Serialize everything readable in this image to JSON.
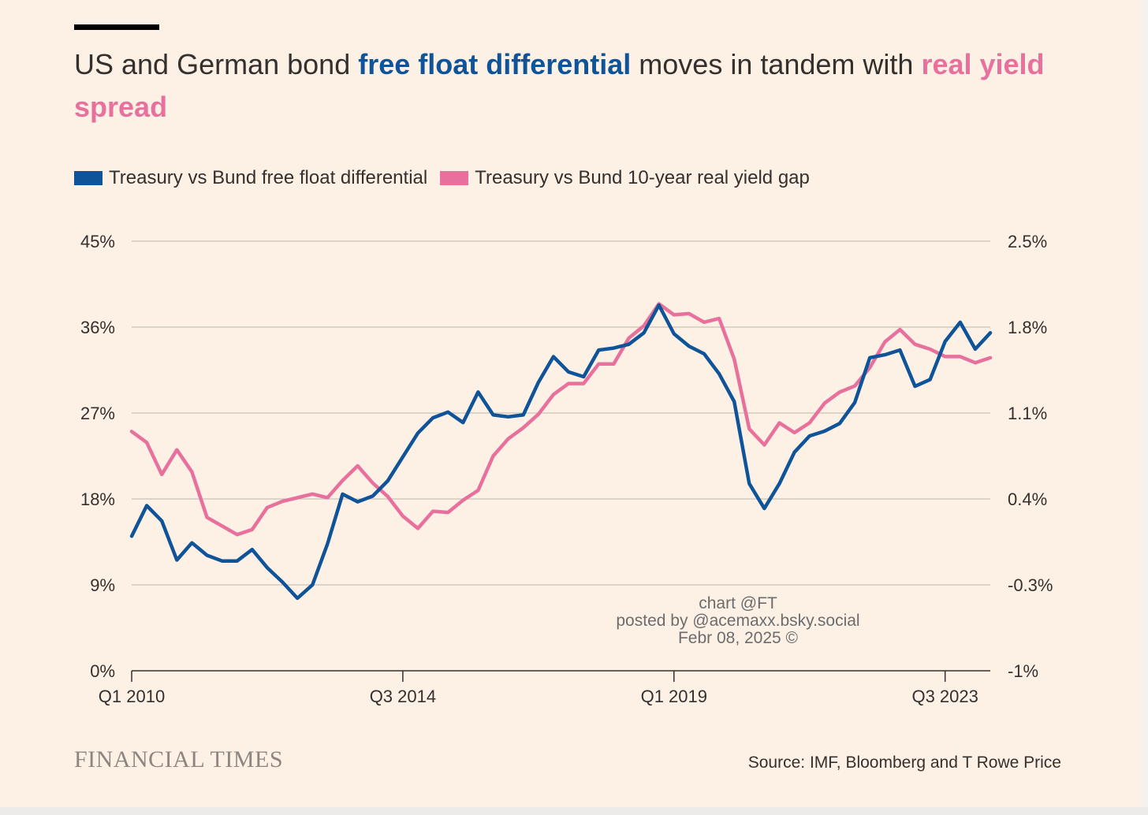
{
  "title": {
    "part1": "US and German bond ",
    "part2": "free float differential",
    "part3": " moves in tandem with ",
    "part4": "real yield spread"
  },
  "colors": {
    "background": "#fdf1e6",
    "blue": "#0f5499",
    "pink": "#e8709c",
    "grid": "#c9c1b8",
    "text": "#33302e"
  },
  "legend": {
    "series1": "Treasury vs Bund free float differential",
    "series2": "Treasury vs Bund 10-year real yield gap"
  },
  "watermark": {
    "line1": "chart @FT",
    "line2": "posted by @acemaxx.bsky.social",
    "line3": "Febr 08, 2025 ©"
  },
  "footer": {
    "logo": "FINANCIAL TIMES",
    "source": "Source: IMF, Bloomberg and T Rowe Price"
  },
  "chart_data": {
    "type": "line",
    "x_start": "Q1 2010",
    "x_step": "quarter",
    "x_ticks": [
      "Q1 2010",
      "Q3 2014",
      "Q1 2019",
      "Q3 2023"
    ],
    "y_left": {
      "ticks": [
        "45%",
        "36%",
        "27%",
        "18%",
        "9%",
        "0%"
      ],
      "lim": [
        0,
        45
      ]
    },
    "y_right": {
      "ticks": [
        "2.5%",
        "1.8%",
        "1.1%",
        "0.4%",
        "-0.3%",
        "-1%"
      ],
      "lim": [
        -1,
        2.5
      ]
    },
    "grid": true,
    "series": [
      {
        "name": "Treasury vs Bund free float differential",
        "axis": "left",
        "color": "#0f5499",
        "values": [
          14.1,
          17.3,
          15.7,
          11.6,
          13.4,
          12.1,
          11.5,
          11.5,
          12.7,
          10.8,
          9.3,
          7.6,
          9.0,
          13.3,
          18.5,
          17.7,
          18.3,
          19.9,
          22.4,
          24.9,
          26.5,
          27.1,
          26.0,
          29.2,
          26.8,
          26.6,
          26.8,
          30.2,
          32.9,
          31.3,
          30.8,
          33.6,
          33.8,
          34.2,
          35.4,
          38.3,
          35.3,
          34.0,
          33.2,
          31.1,
          28.2,
          19.6,
          17.0,
          19.6,
          22.9,
          24.6,
          25.1,
          25.9,
          28.1,
          32.8,
          33.1,
          33.6,
          29.8,
          30.5,
          34.5,
          36.5,
          33.7,
          35.4
        ]
      },
      {
        "name": "Treasury vs Bund 10-year real yield gap",
        "axis": "right",
        "color": "#e8709c",
        "values": [
          0.95,
          0.86,
          0.6,
          0.8,
          0.62,
          0.25,
          0.18,
          0.11,
          0.15,
          0.33,
          0.38,
          0.41,
          0.44,
          0.41,
          0.55,
          0.67,
          0.53,
          0.42,
          0.26,
          0.16,
          0.3,
          0.29,
          0.39,
          0.47,
          0.75,
          0.89,
          0.98,
          1.09,
          1.25,
          1.34,
          1.34,
          1.5,
          1.5,
          1.71,
          1.81,
          1.99,
          1.9,
          1.91,
          1.84,
          1.87,
          1.54,
          0.97,
          0.84,
          1.02,
          0.94,
          1.02,
          1.18,
          1.27,
          1.32,
          1.47,
          1.68,
          1.78,
          1.66,
          1.62,
          1.56,
          1.56,
          1.51,
          1.55
        ]
      }
    ]
  }
}
